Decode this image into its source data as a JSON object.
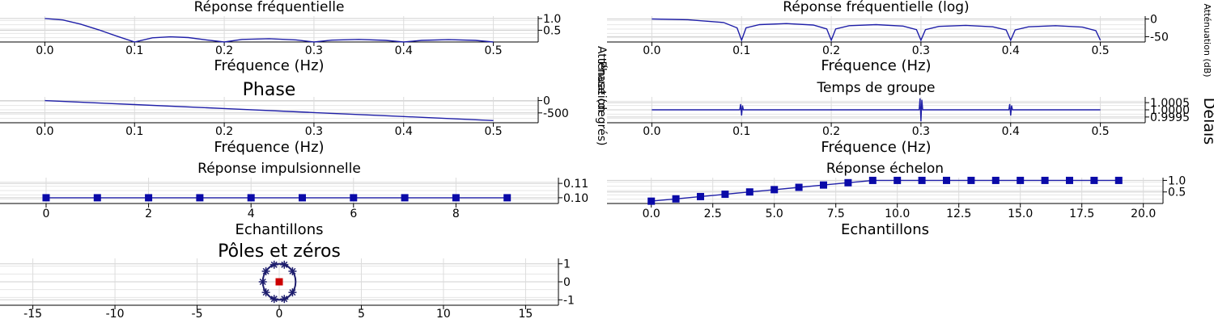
{
  "chart_data": [
    {
      "id": "freq",
      "type": "line",
      "title": "Réponse fréquentielle",
      "xlabel": "Fréquence (Hz)",
      "ylabel": "Atténuation",
      "xlim": [
        -0.05,
        0.55
      ],
      "ylim": [
        0,
        1.1
      ],
      "x_ticks": [
        "0.0",
        "0.1",
        "0.2",
        "0.3",
        "0.4",
        "0.5"
      ],
      "x_tick_values": [
        0.0,
        0.1,
        0.2,
        0.3,
        0.4,
        0.5
      ],
      "y_ticks": [
        "1.0",
        "0.5"
      ],
      "y_tick_values": [
        1.0,
        0.5
      ],
      "grid": true,
      "series": [
        {
          "color": "#1f1fa8",
          "x": [
            0.0,
            0.02,
            0.04,
            0.06,
            0.08,
            0.1,
            0.12,
            0.14,
            0.16,
            0.18,
            0.2,
            0.22,
            0.25,
            0.28,
            0.3,
            0.32,
            0.35,
            0.38,
            0.4,
            0.42,
            0.45,
            0.48,
            0.5
          ],
          "y": [
            1.0,
            0.94,
            0.76,
            0.52,
            0.25,
            0.0,
            0.18,
            0.22,
            0.19,
            0.09,
            0.0,
            0.11,
            0.14,
            0.09,
            0.0,
            0.08,
            0.11,
            0.07,
            0.0,
            0.07,
            0.1,
            0.07,
            0.0
          ]
        }
      ]
    },
    {
      "id": "freq-log",
      "type": "line",
      "title": "Réponse fréquentielle (log)",
      "xlabel": "Fréquence (Hz)",
      "ylabel": "Atténuation (dB)",
      "xlim": [
        -0.05,
        0.55
      ],
      "ylim": [
        -65,
        8
      ],
      "x_ticks": [
        "0.0",
        "0.1",
        "0.2",
        "0.3",
        "0.4",
        "0.5"
      ],
      "x_tick_values": [
        0.0,
        0.1,
        0.2,
        0.3,
        0.4,
        0.5
      ],
      "y_ticks": [
        "0",
        "-50"
      ],
      "y_tick_values": [
        0,
        -50
      ],
      "grid": true,
      "series": [
        {
          "color": "#1f1fa8",
          "x": [
            0.0,
            0.04,
            0.08,
            0.095,
            0.1,
            0.105,
            0.12,
            0.15,
            0.18,
            0.195,
            0.2,
            0.205,
            0.22,
            0.25,
            0.28,
            0.295,
            0.3,
            0.305,
            0.32,
            0.35,
            0.38,
            0.395,
            0.4,
            0.405,
            0.42,
            0.45,
            0.48,
            0.495,
            0.5
          ],
          "y": [
            0,
            -2,
            -10,
            -25,
            -60,
            -25,
            -16,
            -13,
            -17,
            -28,
            -60,
            -28,
            -19,
            -16,
            -20,
            -30,
            -60,
            -30,
            -21,
            -18,
            -22,
            -31,
            -60,
            -31,
            -22,
            -19,
            -23,
            -33,
            -60
          ]
        }
      ]
    },
    {
      "id": "phase",
      "type": "line",
      "title": "Phase",
      "xlabel": "Fréquence (Hz)",
      "ylabel": "Phase (degrés)",
      "xlim": [
        -0.05,
        0.55
      ],
      "ylim": [
        -900,
        150
      ],
      "x_ticks": [
        "0.0",
        "0.1",
        "0.2",
        "0.3",
        "0.4",
        "0.5"
      ],
      "x_tick_values": [
        0.0,
        0.1,
        0.2,
        0.3,
        0.4,
        0.5
      ],
      "y_ticks": [
        "0",
        "-500"
      ],
      "y_tick_values": [
        0,
        -500
      ],
      "grid": true,
      "series": [
        {
          "color": "#1f1fa8",
          "x": [
            0.0,
            0.1,
            0.2,
            0.3,
            0.4,
            0.5
          ],
          "y": [
            0,
            -162,
            -324,
            -486,
            -648,
            -810
          ]
        }
      ]
    },
    {
      "id": "group-delay",
      "type": "line",
      "title": "Temps de groupe",
      "xlabel": "Fréquence (Hz)",
      "ylabel": "Délais",
      "xlim": [
        -0.05,
        0.55
      ],
      "ylim": [
        0.9991,
        1.0009
      ],
      "x_ticks": [
        "0.0",
        "0.1",
        "0.2",
        "0.3",
        "0.4",
        "0.5"
      ],
      "x_tick_values": [
        0.0,
        0.1,
        0.2,
        0.3,
        0.4,
        0.5
      ],
      "y_ticks": [
        "1.0005",
        "1.0000",
        "0.9995"
      ],
      "y_tick_values": [
        1.0005,
        1.0,
        0.9995
      ],
      "grid": true,
      "series": [
        {
          "color": "#1f1fa8",
          "x": [
            0.0,
            0.098,
            0.099,
            0.1,
            0.101,
            0.102,
            0.298,
            0.299,
            0.3,
            0.301,
            0.302,
            0.398,
            0.399,
            0.4,
            0.401,
            0.402,
            0.5
          ],
          "y": [
            1.0,
            1.0,
            1.0004,
            0.9996,
            1.0003,
            1.0,
            1.0,
            1.0008,
            0.9992,
            1.0007,
            1.0,
            1.0,
            1.0004,
            0.9996,
            1.0003,
            1.0,
            1.0
          ]
        }
      ]
    },
    {
      "id": "impulse",
      "type": "line",
      "title": "Réponse impulsionnelle",
      "xlabel": "Echantillons",
      "ylabel": "",
      "xlim": [
        -0.9,
        10
      ],
      "ylim": [
        0.096,
        0.114
      ],
      "x_ticks": [
        "0",
        "2",
        "4",
        "6",
        "8"
      ],
      "x_tick_values": [
        0,
        2,
        4,
        6,
        8
      ],
      "y_ticks": [
        "0.11",
        "0.10"
      ],
      "y_tick_values": [
        0.11,
        0.1
      ],
      "grid": true,
      "series": [
        {
          "color": "#1f1fa8",
          "marker": "square",
          "x": [
            0,
            1,
            2,
            3,
            4,
            5,
            6,
            7,
            8,
            9
          ],
          "y": [
            0.1,
            0.1,
            0.1,
            0.1,
            0.1,
            0.1,
            0.1,
            0.1,
            0.1,
            0.1
          ]
        }
      ]
    },
    {
      "id": "step",
      "type": "line",
      "title": "Réponse échelon",
      "xlabel": "Echantillons",
      "ylabel": "",
      "xlim": [
        -1.8,
        20.8
      ],
      "ylim": [
        0,
        1.12
      ],
      "x_ticks": [
        "0.0",
        "2.5",
        "5.0",
        "7.5",
        "10.0",
        "12.5",
        "15.0",
        "17.5",
        "20.0"
      ],
      "x_tick_values": [
        0,
        2.5,
        5,
        7.5,
        10,
        12.5,
        15,
        17.5,
        20
      ],
      "y_ticks": [
        "1.0",
        "0.5"
      ],
      "y_tick_values": [
        1.0,
        0.5
      ],
      "grid": true,
      "series": [
        {
          "color": "#1f1fa8",
          "marker": "square",
          "x": [
            0,
            1,
            2,
            3,
            4,
            5,
            6,
            7,
            8,
            9,
            10,
            11,
            12,
            13,
            14,
            15,
            16,
            17,
            18,
            19
          ],
          "y": [
            0.1,
            0.2,
            0.3,
            0.4,
            0.5,
            0.6,
            0.7,
            0.8,
            0.9,
            1.0,
            1.0,
            1.0,
            1.0,
            1.0,
            1.0,
            1.0,
            1.0,
            1.0,
            1.0,
            1.0
          ]
        }
      ]
    },
    {
      "id": "pz",
      "type": "scatter",
      "title": "Pôles et zéros",
      "xlabel": "",
      "ylabel": "",
      "xlim": [
        -17,
        17
      ],
      "ylim": [
        -1.3,
        1.3
      ],
      "x_ticks": [
        "-15",
        "-10",
        "-5",
        "0",
        "5",
        "10",
        "15"
      ],
      "x_tick_values": [
        -15,
        -10,
        -5,
        0,
        5,
        10,
        15
      ],
      "y_ticks": [
        "1",
        "0",
        "-1"
      ],
      "y_tick_values": [
        1,
        0,
        -1
      ],
      "grid": true,
      "unit_circle": true,
      "zeros": [
        [
          0.809,
          0.588
        ],
        [
          0.309,
          0.951
        ],
        [
          -0.309,
          0.951
        ],
        [
          -0.809,
          0.588
        ],
        [
          -1.0,
          0.0
        ],
        [
          -0.809,
          -0.588
        ],
        [
          -0.309,
          -0.951
        ],
        [
          0.309,
          -0.951
        ],
        [
          0.809,
          -0.588
        ]
      ],
      "poles": [
        [
          0,
          0
        ]
      ],
      "zero_color": "#1f1f6e",
      "pole_color": "#cc0000"
    }
  ]
}
